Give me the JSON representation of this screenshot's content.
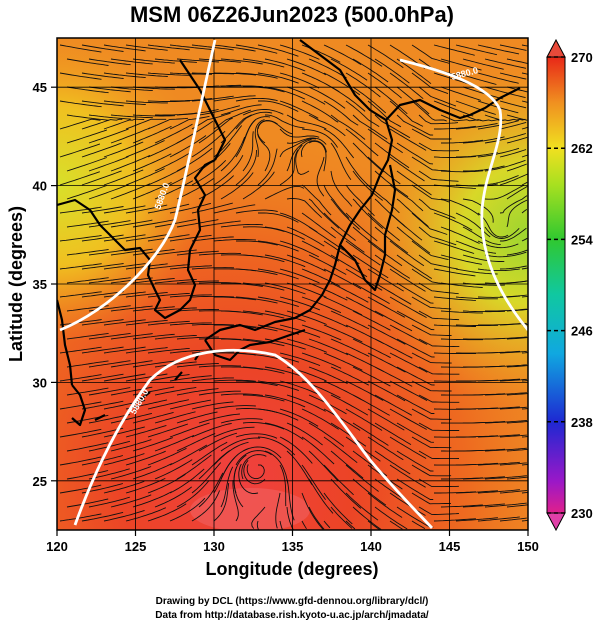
{
  "title": "MSM 06Z26Jun2023 (500.0hPa)",
  "xlabel": "Longitude (degrees)",
  "ylabel": "Latitude  (degrees)",
  "x_ticks": [
    120,
    125,
    130,
    135,
    140,
    145,
    150
  ],
  "y_ticks": [
    25,
    30,
    35,
    40,
    45
  ],
  "xlim": [
    120,
    150
  ],
  "ylim": [
    22.5,
    47.5
  ],
  "colorbar": {
    "min": 230,
    "max": 270,
    "tick_values": [
      230,
      238,
      246,
      254,
      262,
      270
    ],
    "tick_labels": [
      "230",
      "238",
      "246",
      "254",
      "262",
      "270"
    ]
  },
  "contour_label": "5880.0",
  "credit_line1": "Drawing by DCL (https://www.gfd-dennou.org/library/dcl/)",
  "credit_line2": "Data from http://database.rish.kyoto-u.ac.jp/arch/jmadata/"
}
